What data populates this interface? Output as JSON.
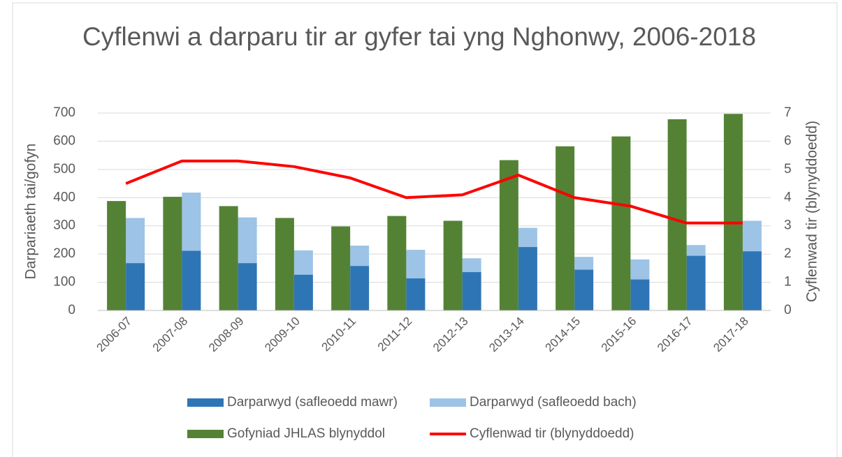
{
  "chart_data": {
    "type": "bar",
    "title": "Cyflenwi a darparu tir ar gyfer tai yng Nghonwy, 2006-2018",
    "y_label": "Darpariaeth tai/gofyn",
    "y2_label": "Cyflenwad tir (blynyddoedd)",
    "categories": [
      "2006-07",
      "2007-08",
      "2008-09",
      "2009-10",
      "2010-11",
      "2011-12",
      "2012-13",
      "2013-14",
      "2014-15",
      "2015-16",
      "2016-17",
      "2017-18"
    ],
    "series": [
      {
        "name": "Darparwyd (safleoedd mawr)",
        "type": "bar",
        "stack": true,
        "color": "#2e75b6",
        "values": [
          168,
          212,
          168,
          127,
          158,
          114,
          136,
          225,
          145,
          110,
          194,
          210
        ]
      },
      {
        "name": "Darparwyd (safleoedd bach)",
        "type": "bar",
        "stack": true,
        "color": "#9dc3e6",
        "values": [
          160,
          206,
          162,
          86,
          72,
          101,
          49,
          68,
          45,
          71,
          38,
          108
        ]
      },
      {
        "name": "Gofyniad JHLAS blynyddol",
        "type": "bar",
        "stack": false,
        "color": "#548235",
        "values": [
          388,
          403,
          370,
          328,
          298,
          335,
          318,
          533,
          582,
          617,
          678,
          697
        ]
      },
      {
        "name": "Cyflenwad tir (blynyddoedd)",
        "type": "line",
        "axis": "y2",
        "color": "#ff0000",
        "values": [
          4.5,
          5.3,
          5.3,
          5.1,
          4.7,
          4.0,
          4.1,
          4.8,
          4.0,
          3.7,
          3.1,
          3.1
        ]
      }
    ],
    "ylim": [
      0,
      700
    ],
    "yticks": [
      0,
      100,
      200,
      300,
      400,
      500,
      600,
      700
    ],
    "y2lim": [
      0,
      7
    ],
    "y2ticks": [
      0,
      1,
      2,
      3,
      4,
      5,
      6,
      7
    ],
    "grid": true,
    "legend": "bottom"
  }
}
